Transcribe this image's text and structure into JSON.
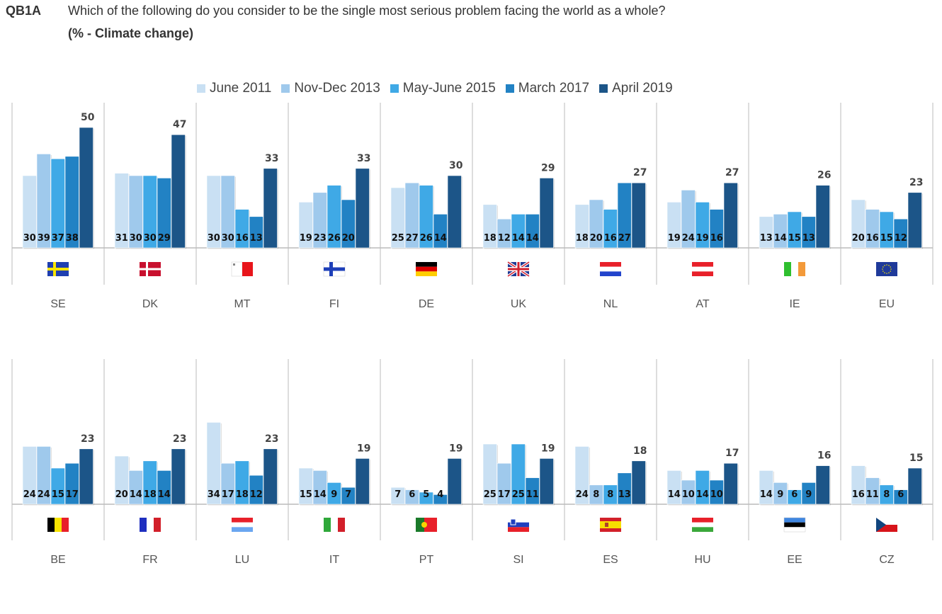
{
  "header": {
    "code": "QB1A",
    "question": "Which of the following do you consider to be the single most serious problem facing the world as a whole?",
    "subtitle": "(% - Climate change)"
  },
  "chart_data": {
    "type": "bar",
    "title": "Which of the following do you consider to be the single most serious problem facing the world as a whole?",
    "subtitle": "(% - Climate change)",
    "xlabel": "",
    "ylabel": "%",
    "ylim": [
      0,
      55
    ],
    "grid": false,
    "legend_position": "top",
    "series_names": [
      "June 2011",
      "Nov-Dec 2013",
      "May-June 2015",
      "March 2017",
      "April 2019"
    ],
    "series_colors": [
      "#c9e0f3",
      "#9fc9ec",
      "#3fa9e6",
      "#2282c4",
      "#1c5588"
    ],
    "rows": [
      {
        "categories": [
          "SE",
          "DK",
          "MT",
          "FI",
          "DE",
          "UK",
          "NL",
          "AT",
          "IE",
          "EU"
        ],
        "values": [
          [
            30,
            39,
            37,
            38,
            50
          ],
          [
            31,
            30,
            30,
            29,
            47
          ],
          [
            30,
            30,
            16,
            13,
            33
          ],
          [
            19,
            23,
            26,
            20,
            33
          ],
          [
            25,
            27,
            26,
            14,
            30
          ],
          [
            18,
            12,
            14,
            14,
            29
          ],
          [
            18,
            20,
            16,
            27,
            27
          ],
          [
            19,
            24,
            19,
            16,
            27
          ],
          [
            13,
            14,
            15,
            13,
            26
          ],
          [
            20,
            16,
            15,
            12,
            23
          ]
        ]
      },
      {
        "categories": [
          "BE",
          "FR",
          "LU",
          "IT",
          "PT",
          "SI",
          "ES",
          "HU",
          "EE",
          "CZ"
        ],
        "values": [
          [
            24,
            24,
            15,
            17,
            23
          ],
          [
            20,
            14,
            18,
            14,
            23
          ],
          [
            34,
            17,
            18,
            12,
            23
          ],
          [
            15,
            14,
            9,
            7,
            19
          ],
          [
            7,
            6,
            5,
            4,
            19
          ],
          [
            25,
            17,
            25,
            11,
            19
          ],
          [
            24,
            8,
            8,
            13,
            18
          ],
          [
            14,
            10,
            14,
            10,
            17
          ],
          [
            14,
            9,
            6,
            9,
            16
          ],
          [
            16,
            11,
            8,
            6,
            15
          ]
        ]
      }
    ],
    "flags": {
      "SE": "sweden-flag",
      "DK": "denmark-flag",
      "MT": "malta-flag",
      "FI": "finland-flag",
      "DE": "germany-flag",
      "UK": "uk-flag",
      "NL": "netherlands-flag",
      "AT": "austria-flag",
      "IE": "ireland-flag",
      "EU": "eu-flag",
      "BE": "belgium-flag",
      "FR": "france-flag",
      "LU": "luxembourg-flag",
      "IT": "italy-flag",
      "PT": "portugal-flag",
      "SI": "slovenia-flag",
      "ES": "spain-flag",
      "HU": "hungary-flag",
      "EE": "estonia-flag",
      "CZ": "czechia-flag"
    }
  }
}
